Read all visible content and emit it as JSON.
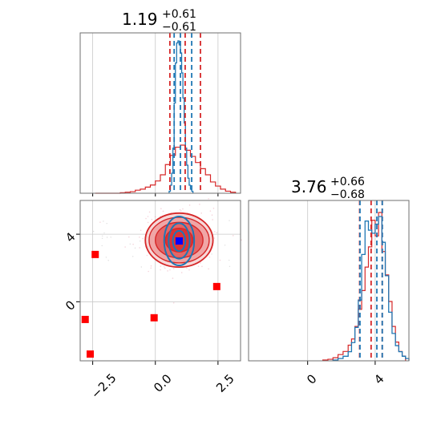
{
  "chart_data": {
    "type": "corner",
    "parameters": [
      {
        "title_value": "1.19",
        "title_plus": "+0.61",
        "title_minus": "−0.61",
        "quantiles_red": [
          0.58,
          1.19,
          1.8
        ],
        "quantiles_blue": [
          0.75,
          1.0,
          1.45
        ],
        "xlim": [
          -3.0,
          3.4
        ],
        "ticks": [
          -2.5,
          0.0,
          2.5
        ],
        "tick_labels": [
          "−2.5",
          "0.0",
          "2.5"
        ]
      },
      {
        "title_value": "3.76",
        "title_plus": "+0.66",
        "title_minus": "−0.68",
        "quantiles_red": [
          3.08,
          3.76,
          4.42
        ],
        "quantiles_blue": [
          3.1,
          4.1,
          4.42
        ],
        "xlim": [
          -3.5,
          6.0
        ],
        "ticks": [
          0,
          4
        ],
        "tick_labels": [
          "0",
          "4"
        ]
      }
    ],
    "hist_x": {
      "red": {
        "edges": [
          -2.4,
          -2.2,
          -2.0,
          -1.8,
          -1.6,
          -1.4,
          -1.2,
          -1.0,
          -0.8,
          -0.6,
          -0.4,
          -0.2,
          0.0,
          0.2,
          0.4,
          0.6,
          0.8,
          1.0,
          1.2,
          1.4,
          1.6,
          1.8,
          2.0,
          2.2,
          2.4,
          2.6,
          2.8,
          3.0,
          3.2
        ],
        "counts": [
          0,
          0,
          0,
          0,
          0,
          0.5,
          1,
          1.5,
          3,
          4,
          6,
          8,
          12,
          18,
          28,
          37,
          45,
          47,
          42,
          36,
          30,
          24,
          18,
          11,
          7,
          4,
          2,
          1
        ]
      },
      "blue": {
        "edges": [
          0.55,
          0.6,
          0.65,
          0.7,
          0.75,
          0.8,
          0.85,
          0.9,
          0.95,
          1.0,
          1.05,
          1.1,
          1.15,
          1.2,
          1.25,
          1.3,
          1.35,
          1.4,
          1.45,
          1.5
        ],
        "counts": [
          2,
          8,
          20,
          45,
          90,
          130,
          150,
          152,
          148,
          140,
          120,
          95,
          70,
          45,
          28,
          15,
          8,
          4,
          2
        ]
      }
    },
    "hist_y": {
      "red": {
        "edges": [
          0.9,
          1.2,
          1.5,
          1.8,
          2.1,
          2.4,
          2.6,
          2.8,
          3.0,
          3.2,
          3.4,
          3.6,
          3.8,
          4.0,
          4.2,
          4.4,
          4.6,
          4.8,
          5.0,
          5.2,
          5.4,
          5.6,
          5.8
        ],
        "counts": [
          0.5,
          1,
          2,
          4,
          6,
          10,
          14,
          22,
          33,
          45,
          60,
          73,
          90,
          80,
          95,
          70,
          55,
          38,
          22,
          12,
          6,
          3
        ]
      },
      "blue": {
        "edges": [
          1.5,
          1.8,
          2.1,
          2.4,
          2.6,
          2.8,
          3.0,
          3.2,
          3.4,
          3.6,
          3.8,
          4.0,
          4.2,
          4.4,
          4.6,
          4.8,
          5.0,
          5.2,
          5.4,
          5.6,
          5.8,
          6.0
        ],
        "counts": [
          0.5,
          1.5,
          3,
          6,
          12,
          22,
          40,
          70,
          92,
          86,
          84,
          90,
          95,
          78,
          56,
          32,
          18,
          10,
          6,
          3,
          1.5
        ]
      }
    },
    "scatter": {
      "xlim": [
        -3.0,
        3.4
      ],
      "ylim": [
        -3.5,
        6.0
      ],
      "red_squares": [
        [
          -2.4,
          2.8
        ],
        [
          -2.8,
          -1.05
        ],
        [
          -2.6,
          -3.1
        ],
        [
          -0.05,
          -0.95
        ],
        [
          2.45,
          0.9
        ],
        [
          0.95,
          3.6
        ]
      ],
      "blue_square": [
        0.95,
        3.6
      ],
      "red_contours": {
        "center": [
          0.95,
          3.65
        ],
        "rx": [
          1.35,
          1.2,
          0.95,
          0.55
        ],
        "ry": [
          1.6,
          1.35,
          1.05,
          0.7
        ]
      },
      "blue_contours": {
        "center": [
          0.95,
          3.6
        ],
        "rx": [
          0.6,
          0.42,
          0.25
        ],
        "ry": [
          1.45,
          1.05,
          0.6
        ]
      },
      "grid": true
    }
  }
}
